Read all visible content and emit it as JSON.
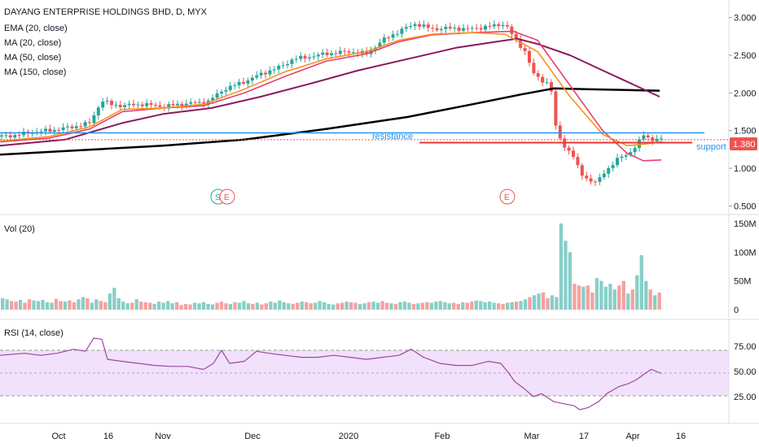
{
  "colors": {
    "up": "#26a69a",
    "down": "#ef5350",
    "ema20": "#f7931e",
    "ma20": "#e8406b",
    "ma50": "#8b1a5a",
    "ma150": "#000000",
    "resistance": "#2196f3",
    "support": "#e53935",
    "rsi_line": "#9c4a9e",
    "rsi_band": "#eedcfa",
    "price_tag": "#ef5350"
  },
  "legend": {
    "title": "DAYANG ENTERPRISE HOLDINGS BHD, D, MYX",
    "ema20": "EMA (20, close)",
    "ma20": "MA (20, close)",
    "ma50": "MA (50, close)",
    "ma150": "MA (150, close)"
  },
  "annotations": {
    "resistance": "resistance",
    "support": "support",
    "last_price": "1.380",
    "event_s": "S",
    "event_e": "E"
  },
  "volume_title": "Vol (20)",
  "rsi_title": "RSI (14, close)",
  "chart_data": [
    {
      "type": "candlestick",
      "title": "DAYANG ENTERPRISE HOLDINGS BHD, D, MYX",
      "y_ticks": [
        "0.500",
        "1.000",
        "1.500",
        "2.000",
        "2.500",
        "3.000"
      ],
      "ylim": [
        0.5,
        3.1
      ],
      "x_ticks": [
        "Oct",
        "16",
        "Nov",
        "Dec",
        "2020",
        "Feb",
        "Mar",
        "17",
        "Apr",
        "16"
      ],
      "resistance_level": 1.47,
      "support_level": 1.34,
      "last_price": 1.38,
      "events": [
        {
          "label": "S",
          "date": "mid Nov"
        },
        {
          "label": "E",
          "date": "mid Nov"
        },
        {
          "label": "E",
          "date": "late Feb"
        }
      ],
      "price_path": [
        [
          0,
          1.42
        ],
        [
          20,
          1.44
        ],
        [
          40,
          1.48
        ],
        [
          60,
          1.5
        ],
        [
          90,
          1.55
        ],
        [
          110,
          1.6
        ],
        [
          125,
          1.9
        ],
        [
          135,
          1.85
        ],
        [
          150,
          1.83
        ],
        [
          175,
          1.85
        ],
        [
          200,
          1.82
        ],
        [
          230,
          1.86
        ],
        [
          255,
          1.88
        ],
        [
          275,
          2.05
        ],
        [
          300,
          2.15
        ],
        [
          320,
          2.25
        ],
        [
          345,
          2.35
        ],
        [
          360,
          2.45
        ],
        [
          380,
          2.48
        ],
        [
          400,
          2.52
        ],
        [
          430,
          2.55
        ],
        [
          450,
          2.52
        ],
        [
          470,
          2.7
        ],
        [
          490,
          2.82
        ],
        [
          510,
          2.92
        ],
        [
          530,
          2.85
        ],
        [
          550,
          2.86
        ],
        [
          575,
          2.85
        ],
        [
          600,
          2.88
        ],
        [
          620,
          2.92
        ],
        [
          632,
          2.72
        ],
        [
          645,
          2.55
        ],
        [
          655,
          2.25
        ],
        [
          668,
          2.15
        ],
        [
          676,
          2.12
        ],
        [
          682,
          1.55
        ],
        [
          692,
          1.3
        ],
        [
          702,
          1.2
        ],
        [
          712,
          0.95
        ],
        [
          722,
          0.85
        ],
        [
          732,
          0.8
        ],
        [
          742,
          0.95
        ],
        [
          752,
          1.05
        ],
        [
          762,
          1.15
        ],
        [
          772,
          1.2
        ],
        [
          782,
          1.3
        ],
        [
          790,
          1.45
        ],
        [
          800,
          1.38
        ],
        [
          812,
          1.38
        ]
      ],
      "ema20": [
        [
          0,
          1.36
        ],
        [
          60,
          1.42
        ],
        [
          110,
          1.55
        ],
        [
          150,
          1.78
        ],
        [
          200,
          1.8
        ],
        [
          250,
          1.85
        ],
        [
          300,
          2.05
        ],
        [
          350,
          2.28
        ],
        [
          400,
          2.45
        ],
        [
          450,
          2.55
        ],
        [
          490,
          2.7
        ],
        [
          530,
          2.78
        ],
        [
          580,
          2.8
        ],
        [
          620,
          2.78
        ],
        [
          660,
          2.55
        ],
        [
          700,
          1.95
        ],
        [
          740,
          1.45
        ],
        [
          770,
          1.3
        ],
        [
          790,
          1.32
        ],
        [
          812,
          1.35
        ]
      ],
      "ma20": [
        [
          0,
          1.35
        ],
        [
          60,
          1.4
        ],
        [
          110,
          1.52
        ],
        [
          150,
          1.75
        ],
        [
          200,
          1.8
        ],
        [
          250,
          1.83
        ],
        [
          300,
          2.0
        ],
        [
          350,
          2.22
        ],
        [
          400,
          2.42
        ],
        [
          450,
          2.52
        ],
        [
          490,
          2.68
        ],
        [
          530,
          2.77
        ],
        [
          580,
          2.8
        ],
        [
          630,
          2.82
        ],
        [
          660,
          2.7
        ],
        [
          700,
          2.1
        ],
        [
          740,
          1.5
        ],
        [
          770,
          1.2
        ],
        [
          790,
          1.1
        ],
        [
          812,
          1.11
        ]
      ],
      "ma50": [
        [
          0,
          1.3
        ],
        [
          80,
          1.38
        ],
        [
          150,
          1.6
        ],
        [
          200,
          1.72
        ],
        [
          260,
          1.8
        ],
        [
          320,
          1.95
        ],
        [
          380,
          2.12
        ],
        [
          440,
          2.3
        ],
        [
          500,
          2.45
        ],
        [
          560,
          2.6
        ],
        [
          610,
          2.68
        ],
        [
          635,
          2.72
        ],
        [
          660,
          2.65
        ],
        [
          700,
          2.5
        ],
        [
          740,
          2.3
        ],
        [
          780,
          2.1
        ],
        [
          810,
          1.95
        ]
      ],
      "ma150": [
        [
          0,
          1.18
        ],
        [
          100,
          1.24
        ],
        [
          200,
          1.3
        ],
        [
          300,
          1.38
        ],
        [
          400,
          1.52
        ],
        [
          500,
          1.68
        ],
        [
          580,
          1.85
        ],
        [
          640,
          1.98
        ],
        [
          680,
          2.06
        ],
        [
          720,
          2.05
        ],
        [
          810,
          2.03
        ]
      ]
    },
    {
      "type": "bar",
      "title": "Vol (20)",
      "y_ticks": [
        "0",
        "50M",
        "100M",
        "150M"
      ],
      "ylim": [
        0,
        150000000
      ],
      "values_millions": [
        20,
        18,
        15,
        14,
        17,
        12,
        18,
        16,
        15,
        17,
        13,
        12,
        19,
        15,
        14,
        16,
        13,
        18,
        22,
        20,
        12,
        18,
        15,
        13,
        28,
        38,
        20,
        14,
        11,
        12,
        18,
        14,
        13,
        12,
        10,
        14,
        12,
        15,
        11,
        13,
        8,
        10,
        9,
        12,
        11,
        13,
        10,
        9,
        12,
        14,
        11,
        10,
        13,
        12,
        15,
        11,
        10,
        12,
        9,
        11,
        14,
        12,
        16,
        13,
        11,
        10,
        12,
        14,
        13,
        11,
        12,
        15,
        13,
        10,
        9,
        11,
        12,
        14,
        13,
        12,
        10,
        11,
        13,
        14,
        12,
        15,
        12,
        11,
        10,
        13,
        14,
        12,
        10,
        11,
        12,
        13,
        12,
        14,
        15,
        13,
        11,
        12,
        10,
        13,
        12,
        14,
        16,
        15,
        13,
        14,
        12,
        11,
        10,
        12,
        13,
        14,
        15,
        18,
        22,
        25,
        28,
        30,
        20,
        25,
        22,
        150,
        120,
        100,
        45,
        42,
        40,
        42,
        30,
        55,
        50,
        40,
        45,
        35,
        42,
        50,
        28,
        35,
        60,
        95,
        50,
        35,
        25,
        30
      ]
    },
    {
      "type": "line",
      "title": "RSI (14, close)",
      "y_ticks": [
        "25.00",
        "50.00",
        "75.00"
      ],
      "ylim": [
        0,
        100
      ],
      "band": [
        30,
        70
      ],
      "values": [
        [
          0,
          66
        ],
        [
          30,
          68
        ],
        [
          50,
          66
        ],
        [
          70,
          68
        ],
        [
          90,
          72
        ],
        [
          105,
          70
        ],
        [
          115,
          83
        ],
        [
          125,
          82
        ],
        [
          132,
          62
        ],
        [
          150,
          60
        ],
        [
          170,
          58
        ],
        [
          190,
          56
        ],
        [
          210,
          55
        ],
        [
          230,
          55
        ],
        [
          250,
          52
        ],
        [
          262,
          58
        ],
        [
          272,
          71
        ],
        [
          282,
          58
        ],
        [
          300,
          60
        ],
        [
          315,
          70
        ],
        [
          330,
          68
        ],
        [
          350,
          66
        ],
        [
          370,
          64
        ],
        [
          390,
          64
        ],
        [
          410,
          66
        ],
        [
          430,
          64
        ],
        [
          450,
          62
        ],
        [
          470,
          64
        ],
        [
          490,
          66
        ],
        [
          505,
          72
        ],
        [
          520,
          64
        ],
        [
          540,
          58
        ],
        [
          560,
          56
        ],
        [
          580,
          56
        ],
        [
          600,
          60
        ],
        [
          615,
          58
        ],
        [
          625,
          48
        ],
        [
          632,
          40
        ],
        [
          645,
          32
        ],
        [
          655,
          25
        ],
        [
          665,
          28
        ],
        [
          680,
          20
        ],
        [
          692,
          18
        ],
        [
          705,
          16
        ],
        [
          712,
          12
        ],
        [
          722,
          14
        ],
        [
          735,
          20
        ],
        [
          745,
          28
        ],
        [
          760,
          35
        ],
        [
          772,
          38
        ],
        [
          782,
          42
        ],
        [
          792,
          48
        ],
        [
          800,
          52
        ],
        [
          812,
          48
        ]
      ]
    }
  ]
}
